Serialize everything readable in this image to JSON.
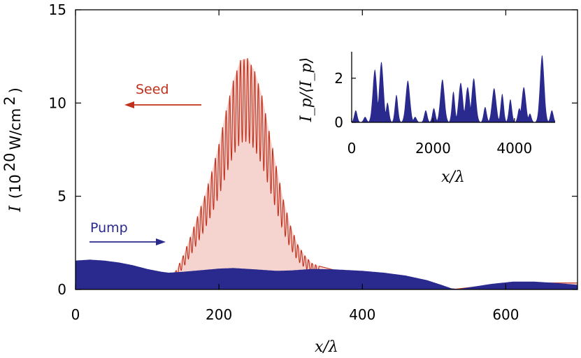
{
  "chart_data": [
    {
      "type": "area",
      "xlabel": "x/λ",
      "ylabel_prefix": "I",
      "ylabel_units": "(10",
      "ylabel_exp": "20",
      "ylabel_units_tail": " W/cm",
      "ylabel_units_exp": "2",
      "ylabel_close": ")",
      "xlim": [
        0,
        700
      ],
      "ylim": [
        0,
        15
      ],
      "xticks": [
        0,
        200,
        400,
        600
      ],
      "yticks": [
        0,
        5,
        10,
        15
      ],
      "grid": false,
      "series": [
        {
          "name": "Seed",
          "color": "#c0301c",
          "fill": "#f5d3cf",
          "envelope": [
            [
              125,
              0
            ],
            [
              130,
              0.3
            ],
            [
              140,
              1.0
            ],
            [
              150,
              1.8
            ],
            [
              160,
              2.8
            ],
            [
              170,
              3.9
            ],
            [
              180,
              5.0
            ],
            [
              190,
              6.3
            ],
            [
              200,
              7.8
            ],
            [
              210,
              9.6
            ],
            [
              220,
              11.2
            ],
            [
              230,
              12.3
            ],
            [
              240,
              12.4
            ],
            [
              250,
              11.7
            ],
            [
              260,
              10.4
            ],
            [
              270,
              8.5
            ],
            [
              280,
              6.6
            ],
            [
              290,
              4.8
            ],
            [
              300,
              3.4
            ],
            [
              310,
              2.4
            ],
            [
              320,
              1.8
            ],
            [
              330,
              1.4
            ],
            [
              340,
              1.25
            ],
            [
              350,
              1.15
            ],
            [
              360,
              1.05
            ],
            [
              380,
              0.85
            ],
            [
              400,
              0.7
            ],
            [
              450,
              0.4
            ],
            [
              500,
              0.15
            ],
            [
              520,
              0.05
            ],
            [
              530,
              0.02
            ],
            [
              560,
              0.15
            ],
            [
              600,
              0.3
            ],
            [
              650,
              0.35
            ],
            [
              700,
              0.35
            ]
          ]
        },
        {
          "name": "Pump",
          "color": "#2a2a8e",
          "envelope": [
            [
              0,
              1.55
            ],
            [
              20,
              1.6
            ],
            [
              40,
              1.55
            ],
            [
              60,
              1.45
            ],
            [
              80,
              1.3
            ],
            [
              100,
              1.1
            ],
            [
              120,
              0.95
            ],
            [
              130,
              0.9
            ],
            [
              150,
              0.95
            ],
            [
              180,
              1.05
            ],
            [
              200,
              1.12
            ],
            [
              220,
              1.15
            ],
            [
              250,
              1.08
            ],
            [
              280,
              1.0
            ],
            [
              300,
              1.02
            ],
            [
              330,
              1.1
            ],
            [
              360,
              1.08
            ],
            [
              400,
              1.0
            ],
            [
              430,
              0.9
            ],
            [
              460,
              0.75
            ],
            [
              490,
              0.5
            ],
            [
              510,
              0.25
            ],
            [
              525,
              0.05
            ],
            [
              535,
              0.02
            ],
            [
              550,
              0.12
            ],
            [
              580,
              0.3
            ],
            [
              610,
              0.42
            ],
            [
              640,
              0.42
            ],
            [
              670,
              0.35
            ],
            [
              700,
              0.25
            ]
          ]
        }
      ],
      "annotations": [
        {
          "text": "Seed",
          "direction": "left",
          "color": "#c0301c"
        },
        {
          "text": "Pump",
          "direction": "right",
          "color": "#2a2a8e"
        }
      ]
    },
    {
      "type": "area",
      "role": "inset",
      "xlabel": "x/λ",
      "ylabel": "I_p/⟨I_p⟩",
      "xlim": [
        0,
        5000
      ],
      "ylim": [
        0,
        3.2
      ],
      "xticks": [
        0,
        2000,
        4000
      ],
      "yticks": [
        0,
        2
      ],
      "color": "#2a2a8e",
      "peaks": [
        [
          100,
          0.55
        ],
        [
          330,
          0.25
        ],
        [
          570,
          2.4
        ],
        [
          730,
          2.75
        ],
        [
          880,
          0.9
        ],
        [
          1100,
          1.25
        ],
        [
          1380,
          1.9
        ],
        [
          1560,
          0.25
        ],
        [
          1820,
          0.55
        ],
        [
          2020,
          0.65
        ],
        [
          2230,
          1.95
        ],
        [
          2500,
          1.4
        ],
        [
          2680,
          1.8
        ],
        [
          2850,
          1.6
        ],
        [
          3000,
          2.0
        ],
        [
          3280,
          0.7
        ],
        [
          3500,
          1.55
        ],
        [
          3700,
          1.3
        ],
        [
          3900,
          1.05
        ],
        [
          4120,
          0.65
        ],
        [
          4230,
          1.6
        ],
        [
          4380,
          0.4
        ],
        [
          4680,
          3.05
        ],
        [
          4920,
          0.55
        ]
      ]
    }
  ]
}
